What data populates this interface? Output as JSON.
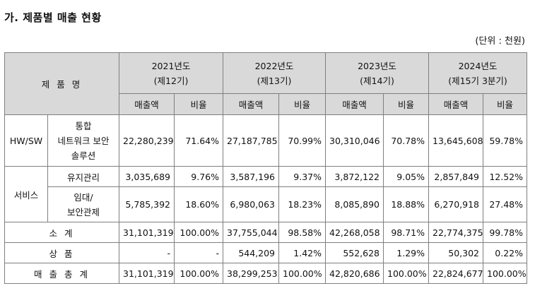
{
  "heading": "가. 제품별 매출 현황",
  "unit": "(단위 : 천원)",
  "table": {
    "product_header": "제 품 명",
    "years": [
      {
        "year": "2021년도",
        "period": "(제12기)"
      },
      {
        "year": "2022년도",
        "period": "(제13기)"
      },
      {
        "year": "2023년도",
        "period": "(제14기)"
      },
      {
        "year": "2024년도",
        "period": "(제15기 3분기)"
      }
    ],
    "sub_sales": "매출액",
    "sub_ratio": "비율",
    "hwsw": {
      "group": "HW/SW",
      "item": [
        "통합",
        "네트워크 보안",
        "솔루션"
      ],
      "values": [
        "22,280,239",
        "71.64%",
        "27,187,785",
        "70.99%",
        "30,310,046",
        "70.78%",
        "13,645,608",
        "59.78%"
      ]
    },
    "service": {
      "group": "서비스",
      "maint": {
        "item": "유지관리",
        "values": [
          "3,035,689",
          "9.76%",
          "3,587,196",
          "9.37%",
          "3,872,122",
          "9.05%",
          "2,857,849",
          "12.52%"
        ]
      },
      "lease": {
        "item": [
          "임대/",
          "보안관제"
        ],
        "values": [
          "5,785,392",
          "18.60%",
          "6,980,063",
          "18.23%",
          "8,085,890",
          "18.88%",
          "6,270,918",
          "27.48%"
        ]
      }
    },
    "subtotal": {
      "label": "소 계",
      "values": [
        "31,101,319",
        "100.00%",
        "37,755,044",
        "98.58%",
        "42,268,058",
        "98.71%",
        "22,774,375",
        "99.78%"
      ]
    },
    "goods": {
      "label": "상 품",
      "values": [
        "-",
        "-",
        "544,209",
        "1.42%",
        "552,628",
        "1.29%",
        "50,302",
        "0.22%"
      ]
    },
    "total": {
      "label": "매 출 총 계",
      "values": [
        "31,101,319",
        "100.00%",
        "38,299,253",
        "100.00%",
        "42,820,686",
        "100.00%",
        "22,824,677",
        "100.00%"
      ]
    }
  }
}
